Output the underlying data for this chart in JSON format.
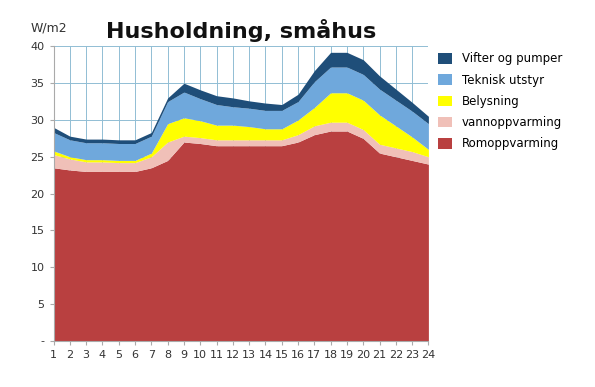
{
  "title": "Husholdning, småhus",
  "ylabel": "W/m2",
  "hours": [
    1,
    2,
    3,
    4,
    5,
    6,
    7,
    8,
    9,
    10,
    11,
    12,
    13,
    14,
    15,
    16,
    17,
    18,
    19,
    20,
    21,
    22,
    23,
    24
  ],
  "romoppvarming": [
    23.5,
    23.2,
    23.0,
    23.0,
    23.0,
    23.0,
    23.5,
    24.5,
    27.0,
    26.8,
    26.5,
    26.5,
    26.5,
    26.5,
    26.5,
    27.0,
    28.0,
    28.5,
    28.5,
    27.5,
    25.5,
    25.0,
    24.5,
    24.0
  ],
  "vannoppvarming": [
    1.8,
    1.5,
    1.3,
    1.3,
    1.2,
    1.2,
    1.5,
    2.5,
    0.8,
    0.8,
    0.8,
    0.8,
    0.8,
    0.8,
    0.8,
    1.0,
    1.2,
    1.2,
    1.2,
    1.2,
    1.2,
    1.2,
    1.2,
    1.0
  ],
  "belysning": [
    0.5,
    0.3,
    0.3,
    0.3,
    0.3,
    0.3,
    0.5,
    2.5,
    2.5,
    2.3,
    2.0,
    2.0,
    1.8,
    1.5,
    1.5,
    2.0,
    2.5,
    4.0,
    4.0,
    4.0,
    4.0,
    3.0,
    2.0,
    1.0
  ],
  "teknisk_utstyr": [
    2.5,
    2.3,
    2.3,
    2.3,
    2.3,
    2.3,
    2.3,
    3.0,
    3.5,
    3.0,
    2.8,
    2.5,
    2.5,
    2.5,
    2.5,
    2.5,
    3.5,
    3.5,
    3.5,
    3.5,
    3.5,
    3.5,
    3.5,
    3.5
  ],
  "vifter_og_pumper": [
    0.7,
    0.5,
    0.5,
    0.5,
    0.5,
    0.5,
    0.5,
    0.5,
    1.2,
    1.2,
    1.2,
    1.2,
    1.0,
    1.0,
    0.8,
    1.0,
    1.5,
    2.0,
    2.0,
    2.0,
    1.8,
    1.5,
    1.2,
    1.0
  ],
  "color_romoppvarming": "#b94040",
  "color_vannoppvarming": "#f0c0b8",
  "color_belysning": "#ffff00",
  "color_teknisk_utstyr": "#6fa8dc",
  "color_vifter_og_pumper": "#1f4e79",
  "legend_labels": [
    "Vifter og pumper",
    "Teknisk utstyr",
    "Belysning",
    "vannoppvarming",
    "Romoppvarming"
  ],
  "ylim": [
    0,
    40
  ],
  "yticks": [
    0,
    5,
    10,
    15,
    20,
    25,
    30,
    35,
    40
  ],
  "ytick_labels": [
    "-",
    "5",
    "10",
    "15",
    "20",
    "25",
    "30",
    "35",
    "40"
  ],
  "background_color": "#ffffff",
  "grid_color": "#91bdd4",
  "title_fontsize": 16,
  "axis_label_fontsize": 9
}
